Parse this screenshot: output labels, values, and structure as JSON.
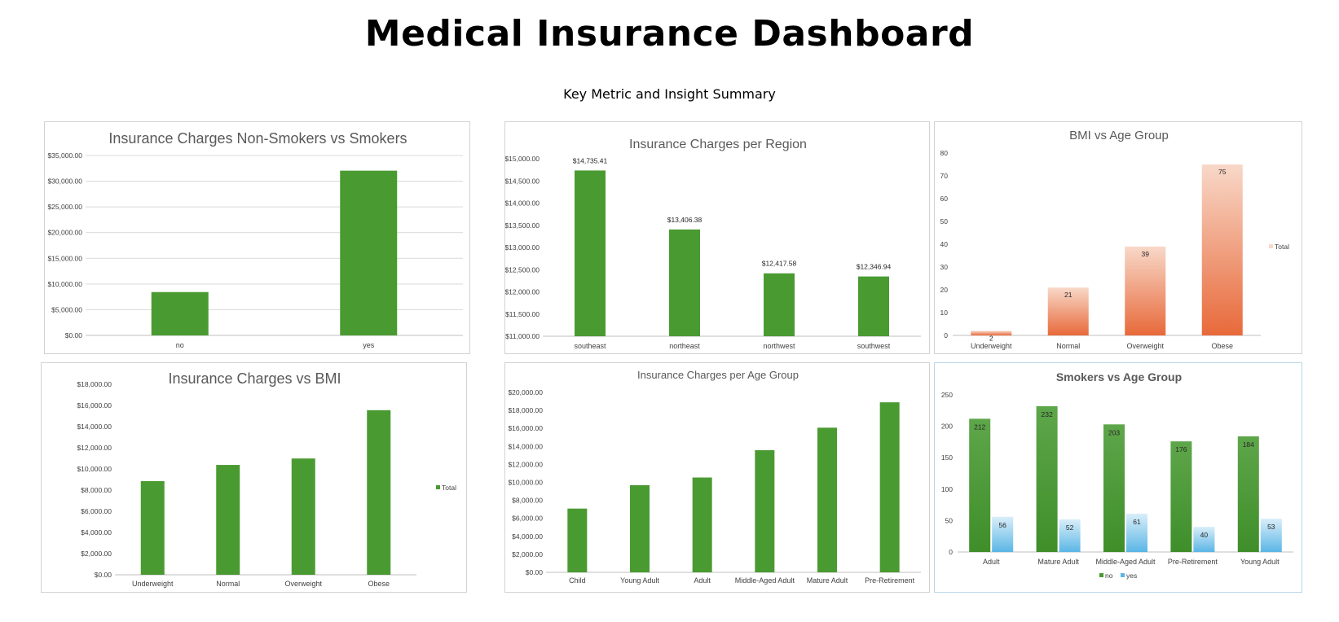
{
  "dashboard": {
    "title": "Medical Insurance Dashboard",
    "subtitle": "Key Metric and Insight Summary"
  },
  "colors": {
    "green": "#4a9a32",
    "orange_light": "#f8d8c8",
    "orange_dark": "#e8693a",
    "blue_light": "#d9eef9",
    "blue_dark": "#5bb6e6",
    "smokers_green_top": "#5ea64a",
    "smokers_green_bottom": "#3f8e2a"
  },
  "chart_data": [
    {
      "id": "smokers",
      "type": "bar",
      "title": "Insurance Charges Non-Smokers vs Smokers",
      "categories": [
        "no",
        "yes"
      ],
      "values": [
        8434.27,
        32050.23
      ],
      "ylim": [
        0,
        35000
      ],
      "yticks": [
        "$0.00",
        "$5,000.00",
        "$10,000.00",
        "$15,000.00",
        "$20,000.00",
        "$25,000.00",
        "$30,000.00",
        "$35,000.00"
      ],
      "grid": true
    },
    {
      "id": "region",
      "type": "bar",
      "title": "Insurance Charges per Region",
      "categories": [
        "southeast",
        "northeast",
        "northwest",
        "southwest"
      ],
      "values": [
        14735.41,
        13406.38,
        12417.58,
        12346.94
      ],
      "data_labels": [
        "$14,735.41",
        "$13,406.38",
        "$12,417.58",
        "$12,346.94"
      ],
      "ylim": [
        11000,
        15000
      ],
      "yticks": [
        "$11,000.00",
        "$11,500.00",
        "$12,000.00",
        "$12,500.00",
        "$13,000.00",
        "$13,500.00",
        "$14,000.00",
        "$14,500.00",
        "$15,000.00"
      ],
      "grid": false
    },
    {
      "id": "bmi_age",
      "type": "bar",
      "title": "BMI vs Age Group",
      "categories": [
        "Underweight",
        "Normal",
        "Overweight",
        "Obese"
      ],
      "values": [
        2,
        21,
        39,
        75
      ],
      "data_labels": [
        "2",
        "21",
        "39",
        "75"
      ],
      "ylim": [
        0,
        80
      ],
      "yticks": [
        "0",
        "10",
        "20",
        "30",
        "40",
        "50",
        "60",
        "70",
        "80"
      ],
      "legend": [
        "Total"
      ],
      "legend_position": "right",
      "grid": false
    },
    {
      "id": "bmi",
      "type": "bar",
      "title": "Insurance Charges vs BMI",
      "categories": [
        "Underweight",
        "Normal",
        "Overweight",
        "Obese"
      ],
      "values": [
        8852.2,
        10379.5,
        10987.5,
        15552.3
      ],
      "ylim": [
        0,
        18000
      ],
      "yticks": [
        "$0.00",
        "$2,000.00",
        "$4,000.00",
        "$6,000.00",
        "$8,000.00",
        "$10,000.00",
        "$12,000.00",
        "$14,000.00",
        "$16,000.00",
        "$18,000.00"
      ],
      "legend": [
        "Total"
      ],
      "legend_position": "right",
      "grid": false
    },
    {
      "id": "age",
      "type": "bar",
      "title": "Insurance Charges per Age Group",
      "categories": [
        "Child",
        "Young Adult",
        "Adult",
        "Middle-Aged Adult",
        "Mature Adult",
        "Pre-Retirement"
      ],
      "values": [
        7087,
        9690,
        10540,
        13580,
        16080,
        18900
      ],
      "ylim": [
        0,
        20000
      ],
      "yticks": [
        "$0.00",
        "$2,000.00",
        "$4,000.00",
        "$6,000.00",
        "$8,000.00",
        "$10,000.00",
        "$12,000.00",
        "$14,000.00",
        "$16,000.00",
        "$18,000.00",
        "$20,000.00"
      ],
      "grid": false
    },
    {
      "id": "smokers_age",
      "type": "bar",
      "title": "Smokers vs Age Group",
      "categories": [
        "Adult",
        "Mature Adult",
        "Middle-Aged Adult",
        "Pre-Retirement",
        "Young Adult"
      ],
      "series": [
        {
          "name": "no",
          "values": [
            212,
            232,
            203,
            176,
            184
          ]
        },
        {
          "name": "yes",
          "values": [
            56,
            52,
            61,
            40,
            53
          ]
        }
      ],
      "ylim": [
        0,
        250
      ],
      "yticks": [
        "0",
        "50",
        "100",
        "150",
        "200",
        "250"
      ],
      "legend_position": "bottom",
      "grid": false
    }
  ]
}
